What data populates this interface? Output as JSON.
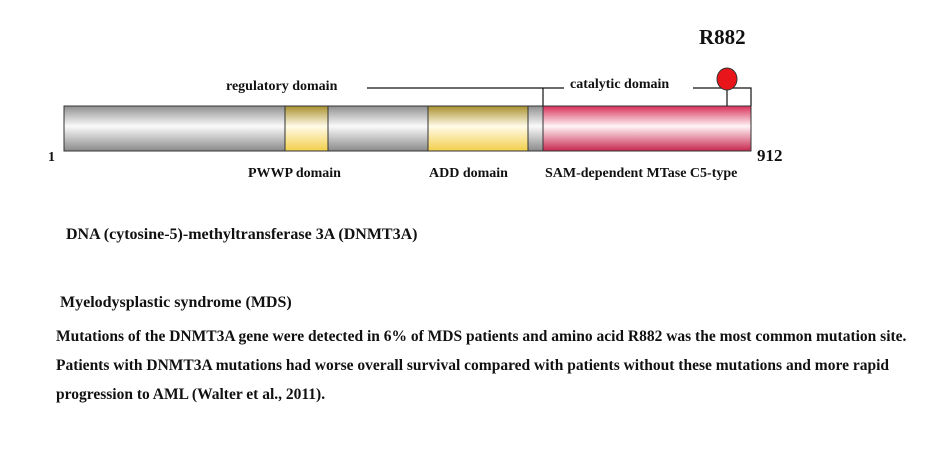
{
  "diagram": {
    "protein_start": "1",
    "protein_end": "912",
    "mutation_label": "R882",
    "regulatory_label": "regulatory domain",
    "catalytic_label": "catalytic domain",
    "domains": [
      {
        "name": "PWWP domain",
        "color": "#f2cf4a"
      },
      {
        "name": "ADD domain",
        "color": "#f2cf4a"
      },
      {
        "name": "SAM-dependent MTase C5-type",
        "color": "#d8305a"
      }
    ],
    "mutation_color": "#e8161b"
  },
  "protein_name": "DNA (cytosine-5)-methyltransferase 3A (DNMT3A)",
  "disease_title": "Myelodysplastic syndrome (MDS)",
  "description": "Mutations of the DNMT3A gene were detected in 6% of MDS patients and amino acid R882 was the most common mutation site. Patients with DNMT3A mutations had worse overall survival compared with patients without these mutations and more rapid progression to AML (Walter et al., 2011)."
}
